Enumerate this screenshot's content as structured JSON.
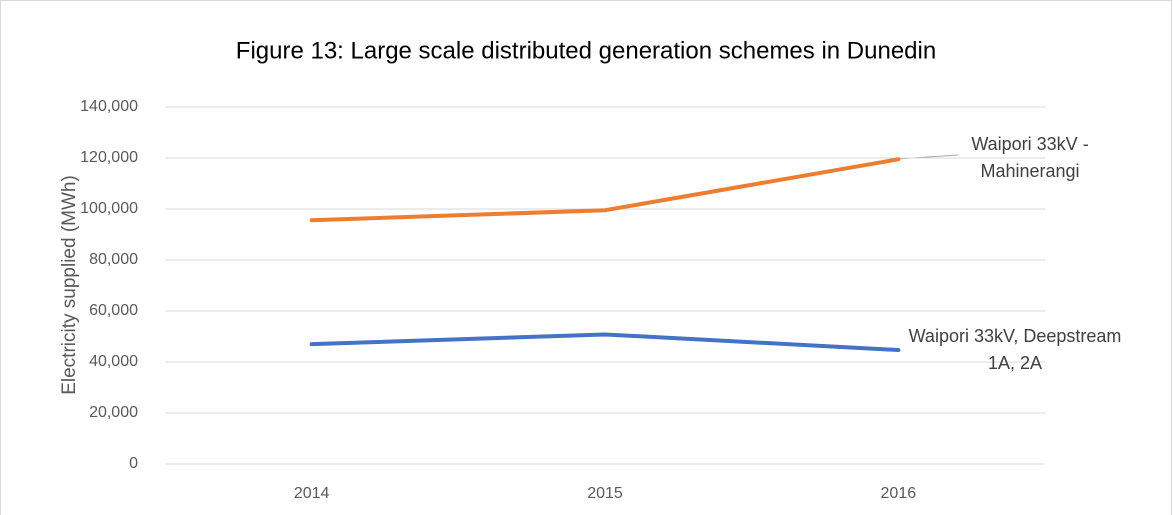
{
  "chart_data": {
    "type": "line",
    "title": "Figure 13: Large scale distributed generation schemes in Dunedin",
    "ylabel": "Electricity supplied (MWh)",
    "categories": [
      "2014",
      "2015",
      "2016"
    ],
    "series": [
      {
        "name": "Waipori 33kV - Mahinerangi",
        "color": "#ed7d31",
        "values": [
          95600,
          99500,
          119500
        ]
      },
      {
        "name": "Waipori 33kV, Deepstream 1A, 2A",
        "color": "#4472c4",
        "values": [
          47000,
          50800,
          44700
        ]
      }
    ],
    "ylim": [
      0,
      140000
    ],
    "yticks": [
      0,
      {
        "value": 20000,
        "label": "20,000"
      },
      {
        "value": 40000,
        "label": "40,000"
      },
      {
        "value": 60000,
        "label": "60,000"
      },
      {
        "value": 80000,
        "label": "80,000"
      },
      {
        "value": 100000,
        "label": "100,000"
      },
      {
        "value": 120000,
        "label": "120,000"
      },
      {
        "value": 140000,
        "label": "140,000"
      }
    ],
    "grid": true
  }
}
